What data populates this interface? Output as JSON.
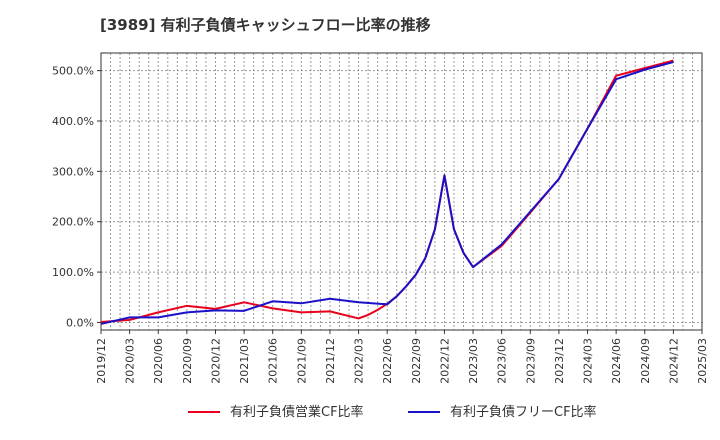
{
  "chart_data": {
    "type": "line",
    "title": "[3989]  有利子負債キャッシュフロー比率の推移",
    "xlabel": "",
    "ylabel": "",
    "y_ticks": [
      0,
      100,
      200,
      300,
      400,
      500
    ],
    "y_tick_labels": [
      "0.0%",
      "100.0%",
      "200.0%",
      "300.0%",
      "400.0%",
      "500.0%"
    ],
    "ylim": [
      -15,
      535
    ],
    "x_ticks": [
      "2019/12",
      "2020/03",
      "2020/06",
      "2020/09",
      "2020/12",
      "2021/03",
      "2021/06",
      "2021/09",
      "2021/12",
      "2022/03",
      "2022/06",
      "2022/09",
      "2022/12",
      "2023/03",
      "2023/06",
      "2023/09",
      "2023/12",
      "2024/03",
      "2024/06",
      "2024/09",
      "2024/12",
      "2025/03"
    ],
    "xlim": [
      "2019/12",
      "2025/03"
    ],
    "grid": true,
    "legend_position": "bottom",
    "series": [
      {
        "name": "有利子負債営業CF比率",
        "color": "#e8001c",
        "points": [
          [
            "2019/12",
            1
          ],
          [
            "2020/03",
            5
          ],
          [
            "2020/06",
            20
          ],
          [
            "2020/09",
            33
          ],
          [
            "2020/12",
            27
          ],
          [
            "2021/03",
            40
          ],
          [
            "2021/04",
            36
          ],
          [
            "2021/06",
            28
          ],
          [
            "2021/09",
            20
          ],
          [
            "2021/12",
            22
          ],
          [
            "2022/03",
            8
          ],
          [
            "2022/04",
            15
          ],
          [
            "2022/05",
            25
          ],
          [
            "2022/06",
            37
          ],
          [
            "2022/07",
            52
          ],
          [
            "2022/08",
            72
          ],
          [
            "2022/09",
            95
          ],
          [
            "2022/10",
            128
          ],
          [
            "2022/11",
            185
          ],
          [
            "2022/12",
            292
          ],
          [
            "2023/01",
            185
          ],
          [
            "2023/02",
            138
          ],
          [
            "2023/03",
            110
          ],
          [
            "2023/06",
            152
          ],
          [
            "2023/09",
            218
          ],
          [
            "2023/12",
            285
          ],
          [
            "2024/03",
            385
          ],
          [
            "2024/06",
            490
          ],
          [
            "2024/09",
            505
          ],
          [
            "2024/12",
            520
          ]
        ]
      },
      {
        "name": "有利子負債フリーCF比率",
        "color": "#1a11c8",
        "points": [
          [
            "2019/12",
            -3
          ],
          [
            "2020/03",
            10
          ],
          [
            "2020/06",
            10
          ],
          [
            "2020/09",
            20
          ],
          [
            "2020/12",
            24
          ],
          [
            "2021/03",
            23
          ],
          [
            "2021/06",
            42
          ],
          [
            "2021/09",
            38
          ],
          [
            "2021/12",
            47
          ],
          [
            "2022/03",
            40
          ],
          [
            "2022/06",
            36
          ],
          [
            "2022/07",
            52
          ],
          [
            "2022/08",
            72
          ],
          [
            "2022/09",
            95
          ],
          [
            "2022/10",
            128
          ],
          [
            "2022/11",
            185
          ],
          [
            "2022/12",
            292
          ],
          [
            "2023/01",
            185
          ],
          [
            "2023/02",
            138
          ],
          [
            "2023/03",
            110
          ],
          [
            "2023/06",
            155
          ],
          [
            "2023/09",
            220
          ],
          [
            "2023/12",
            285
          ],
          [
            "2024/03",
            385
          ],
          [
            "2024/06",
            483
          ],
          [
            "2024/09",
            502
          ],
          [
            "2024/12",
            517
          ]
        ]
      }
    ]
  }
}
